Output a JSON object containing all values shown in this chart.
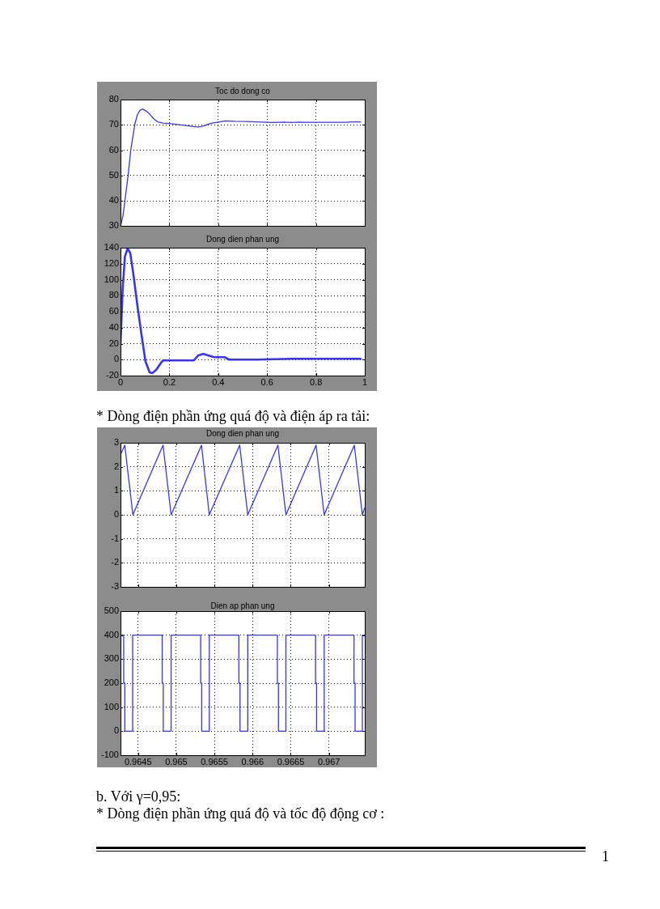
{
  "chart_data": [
    {
      "type": "line",
      "title": "Toc do dong co",
      "x": [
        0,
        0.01,
        0.018,
        0.031,
        0.042,
        0.058,
        0.069,
        0.08,
        0.091,
        0.105,
        0.119,
        0.135,
        0.152,
        0.175,
        0.2,
        0.25,
        0.3,
        0.32,
        0.34,
        0.37,
        0.4,
        0.43,
        0.47,
        0.52,
        0.58,
        0.63,
        0.67,
        0.7,
        0.73,
        0.76,
        0.85,
        0.93,
        0.94,
        0.983
      ],
      "values": [
        30,
        34,
        40,
        50,
        60,
        70,
        74,
        75.8,
        76.2,
        75.5,
        74.3,
        72.5,
        71.2,
        70.7,
        70.5,
        70,
        69.3,
        69.2,
        69.6,
        70.6,
        71.1,
        71.6,
        71.4,
        71.3,
        71.1,
        70.9,
        71.1,
        70.9,
        71.1,
        71,
        71,
        71,
        71.2,
        71.2
      ],
      "color": "#3333ff",
      "xlim": [
        0,
        1
      ],
      "xticks": [
        0,
        0.2,
        0.4,
        0.6,
        0.8,
        1
      ],
      "ylim": [
        30,
        80
      ],
      "yticks": [
        30,
        40,
        50,
        60,
        70,
        80
      ],
      "grid": true,
      "tick_labels": "y"
    },
    {
      "type": "line",
      "title": "Dong dien phan ung",
      "x": [
        0,
        0.009,
        0.018,
        0.029,
        0.04,
        0.053,
        0.069,
        0.086,
        0.102,
        0.119,
        0.13,
        0.146,
        0.168,
        0.175,
        0.23,
        0.3,
        0.317,
        0.339,
        0.361,
        0.383,
        0.427,
        0.444,
        0.56,
        0.7,
        0.85,
        0.983
      ],
      "values": [
        20,
        89,
        129,
        139,
        133,
        106,
        68,
        31,
        -2,
        -16,
        -17,
        -13,
        -3,
        -1,
        -1,
        -1,
        5,
        7,
        5,
        3,
        3,
        0,
        0,
        1,
        1,
        1
      ],
      "color": "#3333ff",
      "xlim": [
        0,
        1
      ],
      "xticks": [
        0,
        0.2,
        0.4,
        0.6,
        0.8,
        1
      ],
      "ylim": [
        -20,
        140
      ],
      "yticks": [
        -20,
        0,
        20,
        40,
        60,
        80,
        100,
        120,
        140
      ],
      "grid": true
    },
    {
      "type": "line",
      "title": "Dong dien phan ung",
      "annotations": [
        "* Dòng điện phần ứng quá độ và điện áp ra tải:"
      ],
      "x": [
        0.96427,
        0.964326,
        0.964432,
        0.964827,
        0.964933,
        0.965331,
        0.965433,
        0.965831,
        0.965937,
        0.966332,
        0.966437,
        0.966832,
        0.966938,
        0.967333,
        0.967438,
        0.96747
      ],
      "values": [
        2.5,
        2.9,
        0,
        2.9,
        0,
        2.9,
        0,
        2.9,
        0,
        2.9,
        0,
        2.9,
        0,
        2.9,
        0,
        0.3
      ],
      "color": "#3333ff",
      "xlim": [
        0.96427,
        0.96747
      ],
      "xticks": [
        0.9645,
        0.965,
        0.9655,
        0.966,
        0.9665,
        0.967
      ],
      "ylim": [
        -3,
        3
      ],
      "yticks": [
        -3,
        -2,
        -1,
        0,
        1,
        2,
        3
      ],
      "grid": true,
      "tick_labels": "y"
    },
    {
      "type": "step",
      "title": "Dien ap phan ung",
      "annotations": [
        "b. Với γ=0,95:",
        "* Dòng điện phần ứng quá độ và tốc độ động cơ :",
        "1"
      ],
      "x": [
        0.96427,
        0.964312,
        0.964326,
        0.964429,
        0.964816,
        0.96483,
        0.964933,
        0.96532,
        0.965334,
        0.965433,
        0.965821,
        0.965835,
        0.965937,
        0.966325,
        0.966339,
        0.966437,
        0.966825,
        0.966839,
        0.966938,
        0.967329,
        0.967343,
        0.967438,
        0.96747
      ],
      "values": [
        400,
        200,
        0,
        400,
        200,
        0,
        400,
        200,
        0,
        400,
        200,
        0,
        400,
        200,
        0,
        400,
        200,
        0,
        400,
        200,
        0,
        400,
        400
      ],
      "color": "#3333ff",
      "xlim": [
        0.96427,
        0.96747
      ],
      "xticks": [
        0.9645,
        0.965,
        0.9655,
        0.966,
        0.9665,
        0.967
      ],
      "ylim": [
        -100,
        500
      ],
      "yticks": [
        -100,
        0,
        100,
        200,
        300,
        400,
        500
      ],
      "grid": true
    }
  ]
}
